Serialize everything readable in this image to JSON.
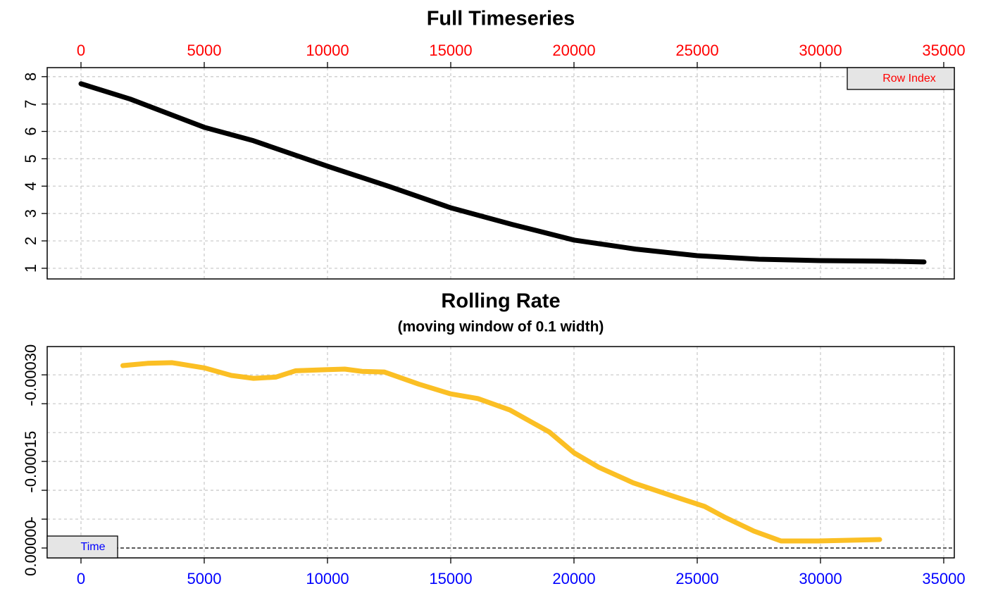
{
  "chart_data": [
    {
      "type": "line",
      "title": "Full Timeseries",
      "xlabel": "Row Index",
      "xaxis_position": "top",
      "tick_color": "#ff0000",
      "color": "#000000",
      "grid": true,
      "x": [
        0,
        2000,
        5000,
        7000,
        10000,
        12500,
        15000,
        17500,
        20000,
        22500,
        25000,
        27500,
        30000,
        32500,
        34200
      ],
      "values": [
        7.74,
        7.18,
        6.15,
        5.66,
        4.73,
        3.99,
        3.21,
        2.6,
        2.03,
        1.7,
        1.46,
        1.33,
        1.28,
        1.26,
        1.23
      ],
      "xlim": [
        -1371,
        35429
      ],
      "xticks": [
        0,
        5000,
        10000,
        15000,
        20000,
        25000,
        30000,
        35000
      ],
      "ylim": [
        0.61,
        8.33
      ],
      "yticks": [
        1,
        2,
        3,
        4,
        5,
        6,
        7,
        8
      ]
    },
    {
      "type": "line",
      "title": "Rolling Rate",
      "subtitle": "(moving window of 0.1 width)",
      "xlabel": "Time",
      "xaxis_position": "bottom",
      "tick_color": "#0000ff",
      "color": "#fbbf24",
      "grid": true,
      "hline": 0,
      "x": [
        1700,
        2700,
        3700,
        5000,
        6100,
        7000,
        7900,
        8700,
        10000,
        10700,
        11400,
        12300,
        13700,
        15000,
        16100,
        17400,
        19000,
        20000,
        21000,
        22400,
        23900,
        25300,
        26100,
        27300,
        28400,
        29900,
        32400
      ],
      "values": [
        -0.000316,
        -0.00032,
        -0.000321,
        -0.000312,
        -0.000299,
        -0.000294,
        -0.000296,
        -0.000307,
        -0.000309,
        -0.00031,
        -0.000306,
        -0.000305,
        -0.000284,
        -0.000267,
        -0.000259,
        -0.000239,
        -0.000201,
        -0.000165,
        -0.00014,
        -0.000113,
        -9.15e-05,
        -7.2e-05,
        -5.37e-05,
        -2.93e-05,
        -1.22e-05,
        -1.22e-05,
        -1.46e-05
      ],
      "xlim": [
        -1371,
        35429
      ],
      "xticks": [
        0,
        5000,
        10000,
        15000,
        20000,
        25000,
        30000,
        35000
      ],
      "ylim": [
        1.71e-05,
        -0.000349
      ],
      "yticks": [
        {
          "value": -0.0003,
          "label": "-0.00030"
        },
        {
          "value": -0.00025,
          "label": "-"
        },
        {
          "value": -0.00015,
          "label": "-0.00015"
        },
        {
          "value": -0.0001,
          "label": "-"
        },
        {
          "value": -5e-05,
          "label": "-"
        },
        {
          "value": 0,
          "label": "0.00000"
        }
      ],
      "ygrid": [
        -0.0003,
        -0.00025,
        -0.0002,
        -0.00015,
        -0.0001,
        -5e-05,
        0
      ]
    }
  ]
}
